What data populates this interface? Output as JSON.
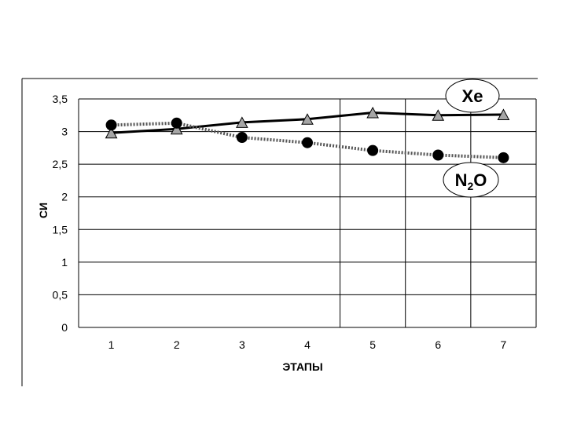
{
  "chart_data": {
    "type": "line",
    "title": "",
    "xlabel": "ЭТАПЫ",
    "ylabel": "СИ",
    "categories": [
      "1",
      "2",
      "3",
      "4",
      "5",
      "6",
      "7"
    ],
    "ylim": [
      0,
      3.5
    ],
    "yticks": [
      "0",
      "0,5",
      "1",
      "1,5",
      "2",
      "2,5",
      "3",
      "3,5"
    ],
    "grid": "horizontal",
    "series": [
      {
        "name": "Xe",
        "values": [
          2.98,
          3.04,
          3.14,
          3.19,
          3.29,
          3.25,
          3.26
        ],
        "marker": "triangle",
        "line": "solid",
        "color": "#000000",
        "marker_fill": "#a6a6a6"
      },
      {
        "name": "N2O",
        "values": [
          3.1,
          3.13,
          2.91,
          2.83,
          2.71,
          2.64,
          2.6
        ],
        "marker": "circle",
        "line": "dotted",
        "color": "#000000",
        "marker_fill": "#000000"
      }
    ],
    "callouts": [
      {
        "series_index": 0,
        "main": "Xe",
        "sub": ""
      },
      {
        "series_index": 1,
        "main": "N",
        "sub": "2",
        "tail": "O"
      }
    ]
  }
}
